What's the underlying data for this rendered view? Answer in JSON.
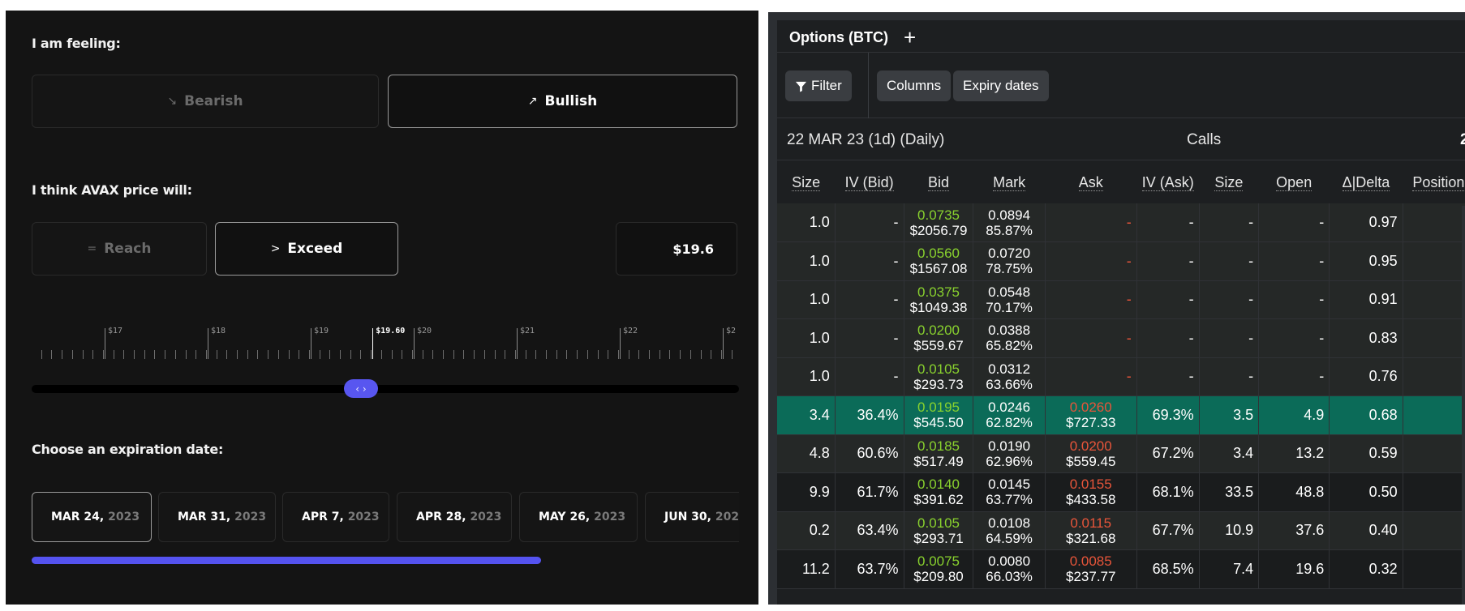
{
  "left": {
    "feeling_label": "I am feeling:",
    "bearish": {
      "icon": "arrow-down-right-icon",
      "glyph": "↘",
      "label": "Bearish"
    },
    "bullish": {
      "icon": "arrow-up-right-icon",
      "glyph": "↗",
      "label": "Bullish"
    },
    "price_label": "I think AVAX price will:",
    "reach": {
      "icon": "equals-icon",
      "glyph": "=",
      "label": "Reach"
    },
    "exceed": {
      "icon": "chevron-right-icon",
      "glyph": ">",
      "label": "Exceed"
    },
    "price_value": "$19.6",
    "ruler": {
      "labels": [
        "$17",
        "$18",
        "$19",
        "$19.60",
        "$20",
        "$21",
        "$22",
        "$2"
      ],
      "current": "$19.60"
    },
    "slider_glyph": "‹ ›",
    "slider_value": 19.6,
    "expiry_label": "Choose an expiration date:",
    "dates": [
      {
        "day": "MAR 24,",
        "year": "2023"
      },
      {
        "day": "MAR 31,",
        "year": "2023"
      },
      {
        "day": "APR 7,",
        "year": "2023"
      },
      {
        "day": "APR 28,",
        "year": "2023"
      },
      {
        "day": "MAY 26,",
        "year": "2023"
      },
      {
        "day": "JUN 30,",
        "year": "202"
      }
    ],
    "scroll_progress": 0.72,
    "accent": "#5553f0"
  },
  "right": {
    "title": "Options (BTC)",
    "add_glyph": "+",
    "filter_label": "Filter",
    "columns_label": "Columns",
    "expiry_label": "Expiry dates",
    "expiry_heading": "22 MAR 23 (1d) (Daily)",
    "calls_heading": "Calls",
    "edge_char": "2",
    "headers": [
      "Size",
      "IV (Bid)",
      "Bid",
      "Mark",
      "Ask",
      "IV (Ask)",
      "Size",
      "Open",
      "Δ|Delta",
      "Position"
    ],
    "rows": [
      {
        "kind": "itm",
        "size": "1.0",
        "iv_bid": "-",
        "bid": "0.0735",
        "bid_usd": "$2056.79",
        "mark": "0.0894",
        "mark_pct": "85.87%",
        "ask": "-",
        "ask_usd": "",
        "iv_ask": "-",
        "size2": "-",
        "open": "-",
        "delta": "0.97",
        "position": "-"
      },
      {
        "kind": "itm",
        "size": "1.0",
        "iv_bid": "-",
        "bid": "0.0560",
        "bid_usd": "$1567.08",
        "mark": "0.0720",
        "mark_pct": "78.75%",
        "ask": "-",
        "ask_usd": "",
        "iv_ask": "-",
        "size2": "-",
        "open": "-",
        "delta": "0.95",
        "position": "-"
      },
      {
        "kind": "itm",
        "size": "1.0",
        "iv_bid": "-",
        "bid": "0.0375",
        "bid_usd": "$1049.38",
        "mark": "0.0548",
        "mark_pct": "70.17%",
        "ask": "-",
        "ask_usd": "",
        "iv_ask": "-",
        "size2": "-",
        "open": "-",
        "delta": "0.91",
        "position": "-"
      },
      {
        "kind": "itm",
        "size": "1.0",
        "iv_bid": "-",
        "bid": "0.0200",
        "bid_usd": "$559.67",
        "mark": "0.0388",
        "mark_pct": "65.82%",
        "ask": "-",
        "ask_usd": "",
        "iv_ask": "-",
        "size2": "-",
        "open": "-",
        "delta": "0.83",
        "position": "-"
      },
      {
        "kind": "itm",
        "size": "1.0",
        "iv_bid": "-",
        "bid": "0.0105",
        "bid_usd": "$293.73",
        "mark": "0.0312",
        "mark_pct": "63.66%",
        "ask": "-",
        "ask_usd": "",
        "iv_ask": "-",
        "size2": "-",
        "open": "-",
        "delta": "0.76",
        "position": "-"
      },
      {
        "kind": "atm",
        "size": "3.4",
        "iv_bid": "36.4%",
        "bid": "0.0195",
        "bid_usd": "$545.50",
        "mark": "0.0246",
        "mark_pct": "62.82%",
        "ask": "0.0260",
        "ask_usd": "$727.33",
        "iv_ask": "69.3%",
        "size2": "3.5",
        "open": "4.9",
        "delta": "0.68",
        "position": "-"
      },
      {
        "kind": "itm",
        "size": "4.8",
        "iv_bid": "60.6%",
        "bid": "0.0185",
        "bid_usd": "$517.49",
        "mark": "0.0190",
        "mark_pct": "62.96%",
        "ask": "0.0200",
        "ask_usd": "$559.45",
        "iv_ask": "67.2%",
        "size2": "3.4",
        "open": "13.2",
        "delta": "0.59",
        "position": "-"
      },
      {
        "kind": "otm",
        "size": "9.9",
        "iv_bid": "61.7%",
        "bid": "0.0140",
        "bid_usd": "$391.62",
        "mark": "0.0145",
        "mark_pct": "63.77%",
        "ask": "0.0155",
        "ask_usd": "$433.58",
        "iv_ask": "68.1%",
        "size2": "33.5",
        "open": "48.8",
        "delta": "0.50",
        "position": "-"
      },
      {
        "kind": "itm",
        "size": "0.2",
        "iv_bid": "63.4%",
        "bid": "0.0105",
        "bid_usd": "$293.71",
        "mark": "0.0108",
        "mark_pct": "64.59%",
        "ask": "0.0115",
        "ask_usd": "$321.68",
        "iv_ask": "67.7%",
        "size2": "10.9",
        "open": "37.6",
        "delta": "0.40",
        "position": "-"
      },
      {
        "kind": "otm",
        "size": "11.2",
        "iv_bid": "63.7%",
        "bid": "0.0075",
        "bid_usd": "$209.80",
        "mark": "0.0080",
        "mark_pct": "66.03%",
        "ask": "0.0085",
        "ask_usd": "$237.77",
        "iv_ask": "68.5%",
        "size2": "7.4",
        "open": "19.6",
        "delta": "0.32",
        "position": "-"
      }
    ]
  }
}
